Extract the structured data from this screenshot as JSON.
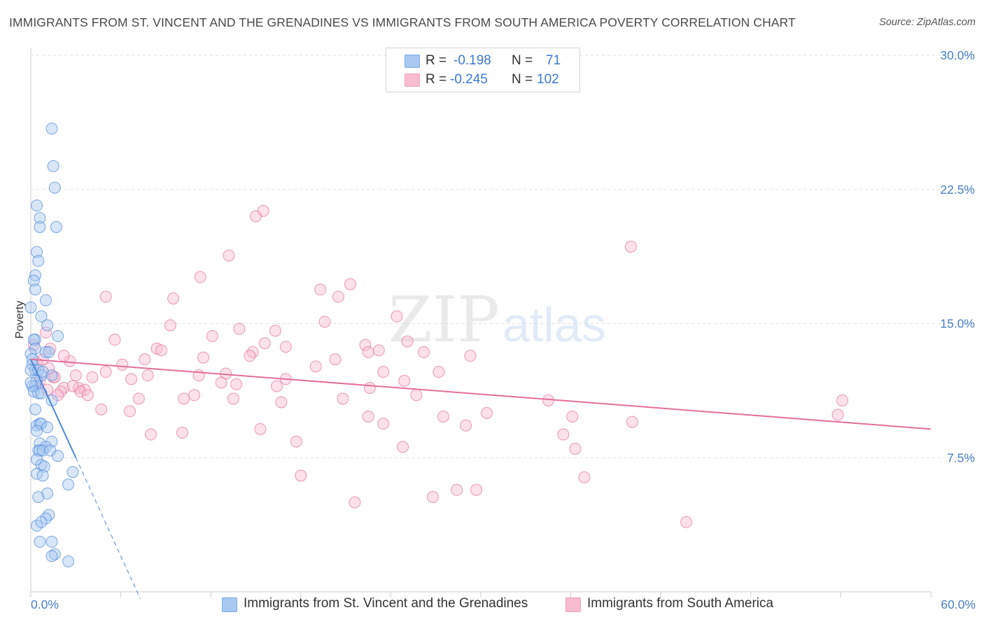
{
  "title": "IMMIGRANTS FROM ST. VINCENT AND THE GRENADINES VS IMMIGRANTS FROM SOUTH AMERICA POVERTY CORRELATION CHART",
  "source": "Source: ZipAtlas.com",
  "watermark": {
    "zip": "ZIP",
    "atlas": "atlas"
  },
  "legend_top": {
    "r_label": "R =",
    "n_label": "N =",
    "rows": [
      {
        "r": "-0.198",
        "n": "71",
        "color": "#a8c8f0"
      },
      {
        "r": "-0.245",
        "n": "102",
        "color": "#f8bcd0"
      }
    ]
  },
  "legend_bottom": [
    {
      "label": "Immigrants from St. Vincent and the Grenadines",
      "color": "#a8c8f0"
    },
    {
      "label": "Immigrants from South America",
      "color": "#f8bcd0"
    }
  ],
  "chart_data": {
    "type": "scatter",
    "xlabel": "",
    "ylabel": "Poverty",
    "xlim": [
      0,
      60
    ],
    "ylim": [
      0,
      30
    ],
    "x_ticks": [
      {
        "value": 0,
        "label": "0.0%"
      },
      {
        "value": 60,
        "label": "60.0%"
      }
    ],
    "y_ticks": [
      {
        "value": 7.5,
        "label": "7.5%"
      },
      {
        "value": 15,
        "label": "15.0%"
      },
      {
        "value": 22.5,
        "label": "22.5%"
      },
      {
        "value": 30,
        "label": "30.0%"
      }
    ],
    "grid": true,
    "series": [
      {
        "name": "Immigrants from St. Vincent and the Grenadines",
        "color": "#4a86d8",
        "fill": "#a8c8f0",
        "trend": {
          "x0": 0,
          "y0": 13.0,
          "x1": 3.0,
          "y1": 7.5,
          "dash_to_x": 7.3
        },
        "points": [
          [
            1.4,
            25.9
          ],
          [
            1.5,
            23.8
          ],
          [
            1.6,
            22.6
          ],
          [
            0.4,
            21.6
          ],
          [
            0.6,
            20.9
          ],
          [
            0.6,
            20.4
          ],
          [
            1.7,
            20.4
          ],
          [
            0.4,
            19.0
          ],
          [
            0.5,
            18.5
          ],
          [
            0.3,
            17.7
          ],
          [
            0.2,
            17.4
          ],
          [
            0.3,
            16.9
          ],
          [
            0.0,
            15.9
          ],
          [
            0.7,
            15.4
          ],
          [
            1.0,
            16.3
          ],
          [
            1.1,
            14.9
          ],
          [
            1.8,
            14.3
          ],
          [
            0.3,
            14.1
          ],
          [
            0.2,
            14.1
          ],
          [
            0.3,
            13.6
          ],
          [
            0.0,
            13.3
          ],
          [
            0.1,
            13.0
          ],
          [
            1.0,
            13.4
          ],
          [
            1.2,
            13.4
          ],
          [
            0.1,
            12.7
          ],
          [
            0.3,
            12.4
          ],
          [
            0.0,
            12.4
          ],
          [
            0.5,
            12.4
          ],
          [
            0.7,
            12.1
          ],
          [
            0.8,
            12.3
          ],
          [
            1.4,
            12.1
          ],
          [
            0.4,
            11.8
          ],
          [
            0.3,
            11.5
          ],
          [
            0.1,
            11.5
          ],
          [
            0.0,
            11.7
          ],
          [
            0.2,
            11.2
          ],
          [
            0.5,
            11.1
          ],
          [
            0.7,
            11.1
          ],
          [
            1.4,
            10.7
          ],
          [
            0.3,
            10.2
          ],
          [
            0.4,
            9.3
          ],
          [
            0.6,
            9.4
          ],
          [
            0.7,
            9.4
          ],
          [
            1.1,
            9.2
          ],
          [
            0.4,
            9.0
          ],
          [
            0.6,
            8.3
          ],
          [
            1.4,
            8.4
          ],
          [
            1.0,
            8.1
          ],
          [
            0.5,
            7.9
          ],
          [
            0.6,
            7.9
          ],
          [
            0.8,
            7.9
          ],
          [
            1.3,
            7.9
          ],
          [
            1.8,
            7.6
          ],
          [
            0.4,
            7.4
          ],
          [
            0.7,
            7.1
          ],
          [
            0.9,
            7.0
          ],
          [
            2.8,
            6.7
          ],
          [
            0.4,
            6.6
          ],
          [
            0.8,
            6.5
          ],
          [
            2.5,
            6.0
          ],
          [
            1.1,
            5.5
          ],
          [
            0.5,
            5.3
          ],
          [
            1.2,
            4.3
          ],
          [
            1.0,
            4.1
          ],
          [
            0.4,
            3.7
          ],
          [
            0.6,
            2.8
          ],
          [
            1.4,
            2.8
          ],
          [
            1.6,
            2.1
          ],
          [
            1.4,
            2.0
          ],
          [
            2.5,
            1.7
          ],
          [
            0.7,
            3.9
          ]
        ]
      },
      {
        "name": "Immigrants from South America",
        "color": "#e36f9b",
        "fill": "#f8bcd0",
        "trend": {
          "x0": 0,
          "y0": 13.0,
          "x1": 60,
          "y1": 9.1
        },
        "points": [
          [
            15.5,
            21.3
          ],
          [
            15.0,
            21.0
          ],
          [
            40.0,
            19.3
          ],
          [
            13.2,
            18.8
          ],
          [
            11.3,
            17.6
          ],
          [
            21.3,
            17.2
          ],
          [
            19.3,
            16.9
          ],
          [
            5.0,
            16.5
          ],
          [
            9.5,
            16.4
          ],
          [
            20.5,
            16.5
          ],
          [
            24.4,
            15.4
          ],
          [
            9.3,
            14.9
          ],
          [
            19.6,
            15.1
          ],
          [
            13.9,
            14.7
          ],
          [
            16.3,
            14.6
          ],
          [
            12.1,
            14.3
          ],
          [
            5.6,
            14.1
          ],
          [
            25.1,
            14.0
          ],
          [
            15.6,
            13.9
          ],
          [
            22.3,
            13.8
          ],
          [
            8.4,
            13.6
          ],
          [
            8.7,
            13.5
          ],
          [
            14.8,
            13.4
          ],
          [
            22.5,
            13.4
          ],
          [
            23.2,
            13.5
          ],
          [
            17.0,
            13.7
          ],
          [
            26.2,
            13.4
          ],
          [
            14.6,
            13.2
          ],
          [
            11.5,
            13.1
          ],
          [
            29.3,
            13.2
          ],
          [
            7.6,
            13.0
          ],
          [
            20.3,
            13.0
          ],
          [
            2.6,
            12.9
          ],
          [
            6.1,
            12.7
          ],
          [
            19.0,
            12.6
          ],
          [
            5.0,
            12.3
          ],
          [
            3.0,
            12.1
          ],
          [
            13.0,
            12.2
          ],
          [
            11.2,
            12.1
          ],
          [
            27.2,
            12.3
          ],
          [
            7.8,
            12.1
          ],
          [
            23.5,
            12.3
          ],
          [
            1.5,
            12.0
          ],
          [
            6.7,
            11.9
          ],
          [
            17.0,
            11.9
          ],
          [
            12.7,
            11.7
          ],
          [
            24.9,
            11.8
          ],
          [
            13.7,
            11.6
          ],
          [
            16.4,
            11.5
          ],
          [
            22.6,
            11.4
          ],
          [
            2.2,
            11.4
          ],
          [
            1.1,
            11.3
          ],
          [
            3.2,
            11.4
          ],
          [
            3.6,
            11.3
          ],
          [
            2.0,
            11.2
          ],
          [
            3.3,
            11.2
          ],
          [
            3.8,
            11.0
          ],
          [
            10.9,
            11.0
          ],
          [
            13.5,
            10.8
          ],
          [
            25.7,
            11.0
          ],
          [
            7.2,
            10.8
          ],
          [
            10.2,
            10.8
          ],
          [
            16.7,
            10.6
          ],
          [
            20.8,
            10.8
          ],
          [
            34.5,
            10.7
          ],
          [
            54.1,
            10.7
          ],
          [
            6.6,
            10.1
          ],
          [
            4.7,
            10.2
          ],
          [
            30.4,
            10.0
          ],
          [
            53.8,
            9.9
          ],
          [
            27.5,
            9.8
          ],
          [
            40.1,
            9.5
          ],
          [
            22.5,
            9.8
          ],
          [
            23.5,
            9.4
          ],
          [
            29.0,
            9.3
          ],
          [
            36.1,
            9.8
          ],
          [
            15.3,
            9.1
          ],
          [
            8.0,
            8.8
          ],
          [
            10.1,
            8.9
          ],
          [
            35.5,
            8.8
          ],
          [
            17.7,
            8.4
          ],
          [
            24.8,
            8.1
          ],
          [
            36.3,
            8.0
          ],
          [
            18.0,
            6.5
          ],
          [
            28.4,
            5.7
          ],
          [
            29.7,
            5.7
          ],
          [
            36.9,
            6.4
          ],
          [
            21.6,
            5.0
          ],
          [
            26.8,
            5.3
          ],
          [
            43.7,
            3.9
          ],
          [
            0.6,
            11.8
          ],
          [
            1.2,
            12.5
          ],
          [
            0.8,
            13.0
          ],
          [
            1.6,
            12.0
          ],
          [
            1.0,
            14.5
          ],
          [
            2.2,
            13.2
          ],
          [
            0.4,
            12.8
          ],
          [
            1.8,
            11.0
          ],
          [
            2.8,
            11.5
          ],
          [
            4.1,
            12.0
          ],
          [
            0.2,
            13.8
          ],
          [
            1.3,
            13.6
          ]
        ]
      }
    ]
  }
}
